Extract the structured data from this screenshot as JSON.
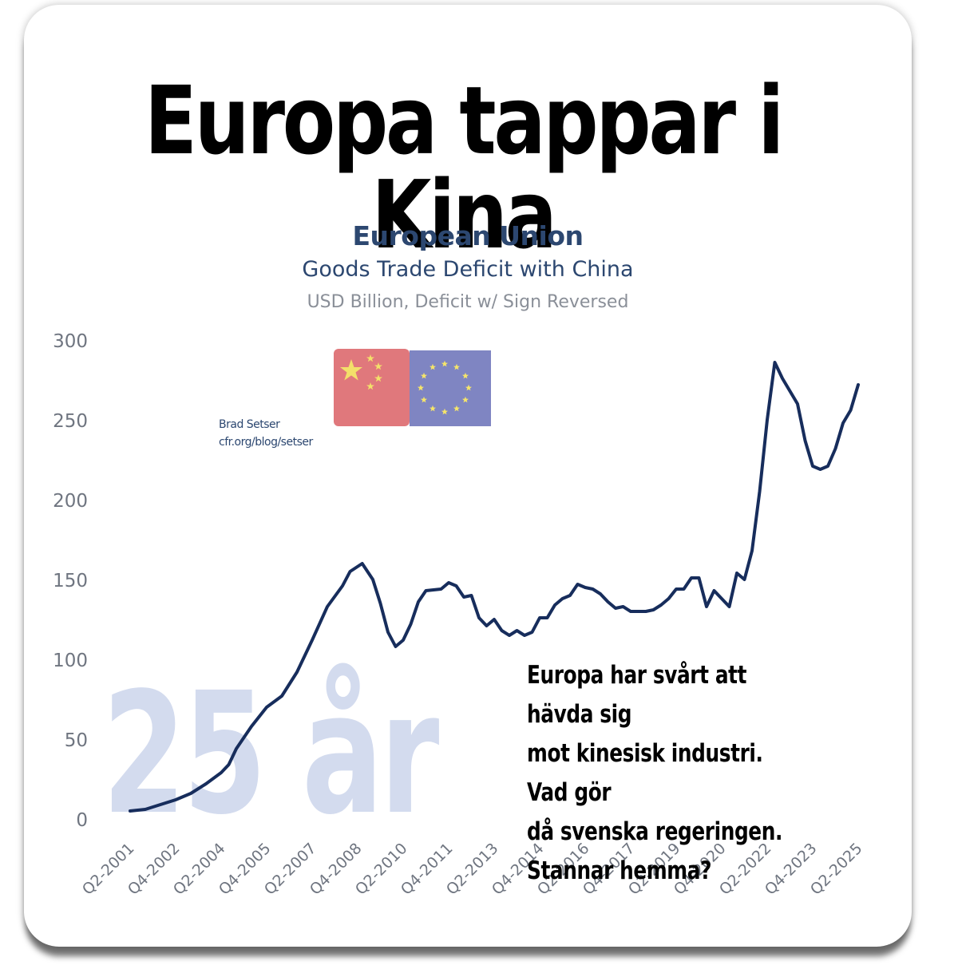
{
  "headline": "Europa tappar i Kina",
  "comment_lines": [
    "Europa har svårt att hävda sig",
    "mot kinesisk industri. Vad gör",
    "då svenska regeringen.",
    "Stannar hemma?"
  ],
  "watermark_text": "25 år",
  "credit": {
    "name": "Brad Setser",
    "url": "cfr.org/blog/setser"
  },
  "flags": [
    "china-flag-icon",
    "eu-flag-icon"
  ],
  "colors": {
    "line": "#172d5c",
    "watermark": "#d3dbee",
    "china_flag": "#e0787c",
    "eu_flag": "#7f85c2"
  },
  "chart_data": {
    "type": "line",
    "title": "European Union",
    "subtitle": "Goods Trade Deficit with China",
    "ylabel": "USD Billion, Deficit w/ Sign Reversed",
    "ylim": [
      0,
      300
    ],
    "yticks": [
      0,
      50,
      100,
      150,
      200,
      250,
      300
    ],
    "x_range": [
      2001.25,
      2025.25
    ],
    "grid": false,
    "xtick_labels": [
      {
        "label": "Q2-2001",
        "t": 2001.25
      },
      {
        "label": "Q4-2002",
        "t": 2002.75
      },
      {
        "label": "Q2-2004",
        "t": 2004.25
      },
      {
        "label": "Q4-2005",
        "t": 2005.75
      },
      {
        "label": "Q2-2007",
        "t": 2007.25
      },
      {
        "label": "Q4-2008",
        "t": 2008.75
      },
      {
        "label": "Q2-2010",
        "t": 2010.25
      },
      {
        "label": "Q4-2011",
        "t": 2011.75
      },
      {
        "label": "Q2-2013",
        "t": 2013.25
      },
      {
        "label": "Q4-2014",
        "t": 2014.75
      },
      {
        "label": "Q2-2016",
        "t": 2016.25
      },
      {
        "label": "Q4-2017",
        "t": 2017.75
      },
      {
        "label": "Q2-2019",
        "t": 2019.25
      },
      {
        "label": "Q4-2020",
        "t": 2020.75
      },
      {
        "label": "Q2-2022",
        "t": 2022.25
      },
      {
        "label": "Q4-2023",
        "t": 2023.75
      },
      {
        "label": "Q2-2025",
        "t": 2025.25
      }
    ],
    "series": [
      {
        "points": [
          [
            2001.25,
            5
          ],
          [
            2001.75,
            6
          ],
          [
            2002.25,
            9
          ],
          [
            2002.75,
            12
          ],
          [
            2003.25,
            16
          ],
          [
            2003.75,
            22
          ],
          [
            2004.25,
            29
          ],
          [
            2004.5,
            34
          ],
          [
            2004.75,
            44
          ],
          [
            2005.25,
            58
          ],
          [
            2005.75,
            70
          ],
          [
            2006.25,
            77
          ],
          [
            2006.75,
            92
          ],
          [
            2007.25,
            112
          ],
          [
            2007.75,
            133
          ],
          [
            2008.25,
            146
          ],
          [
            2008.5,
            155
          ],
          [
            2008.9,
            160
          ],
          [
            2009.25,
            150
          ],
          [
            2009.5,
            135
          ],
          [
            2009.75,
            117
          ],
          [
            2010.0,
            108
          ],
          [
            2010.25,
            112
          ],
          [
            2010.5,
            122
          ],
          [
            2010.75,
            136
          ],
          [
            2011.0,
            143
          ],
          [
            2011.5,
            144
          ],
          [
            2011.75,
            148
          ],
          [
            2012.0,
            146
          ],
          [
            2012.25,
            139
          ],
          [
            2012.5,
            140
          ],
          [
            2012.75,
            126
          ],
          [
            2013.0,
            121
          ],
          [
            2013.25,
            125
          ],
          [
            2013.5,
            118
          ],
          [
            2013.75,
            115
          ],
          [
            2014.0,
            118
          ],
          [
            2014.25,
            115
          ],
          [
            2014.5,
            117
          ],
          [
            2014.75,
            126
          ],
          [
            2015.0,
            126
          ],
          [
            2015.25,
            134
          ],
          [
            2015.5,
            138
          ],
          [
            2015.75,
            140
          ],
          [
            2016.0,
            147
          ],
          [
            2016.25,
            145
          ],
          [
            2016.5,
            144
          ],
          [
            2016.75,
            141
          ],
          [
            2017.0,
            136
          ],
          [
            2017.25,
            132
          ],
          [
            2017.5,
            133
          ],
          [
            2017.75,
            130
          ],
          [
            2018.0,
            130
          ],
          [
            2018.25,
            130
          ],
          [
            2018.5,
            131
          ],
          [
            2018.75,
            134
          ],
          [
            2019.0,
            138
          ],
          [
            2019.25,
            144
          ],
          [
            2019.5,
            144
          ],
          [
            2019.75,
            151
          ],
          [
            2020.0,
            151
          ],
          [
            2020.25,
            133
          ],
          [
            2020.5,
            143
          ],
          [
            2020.75,
            138
          ],
          [
            2021.0,
            133
          ],
          [
            2021.25,
            154
          ],
          [
            2021.5,
            150
          ],
          [
            2021.75,
            168
          ],
          [
            2022.0,
            205
          ],
          [
            2022.25,
            250
          ],
          [
            2022.5,
            286
          ],
          [
            2022.75,
            276
          ],
          [
            2023.0,
            268
          ],
          [
            2023.25,
            260
          ],
          [
            2023.5,
            237
          ],
          [
            2023.75,
            221
          ],
          [
            2024.0,
            219
          ],
          [
            2024.25,
            221
          ],
          [
            2024.5,
            232
          ],
          [
            2024.75,
            248
          ],
          [
            2025.0,
            256
          ],
          [
            2025.25,
            272
          ]
        ]
      }
    ]
  }
}
